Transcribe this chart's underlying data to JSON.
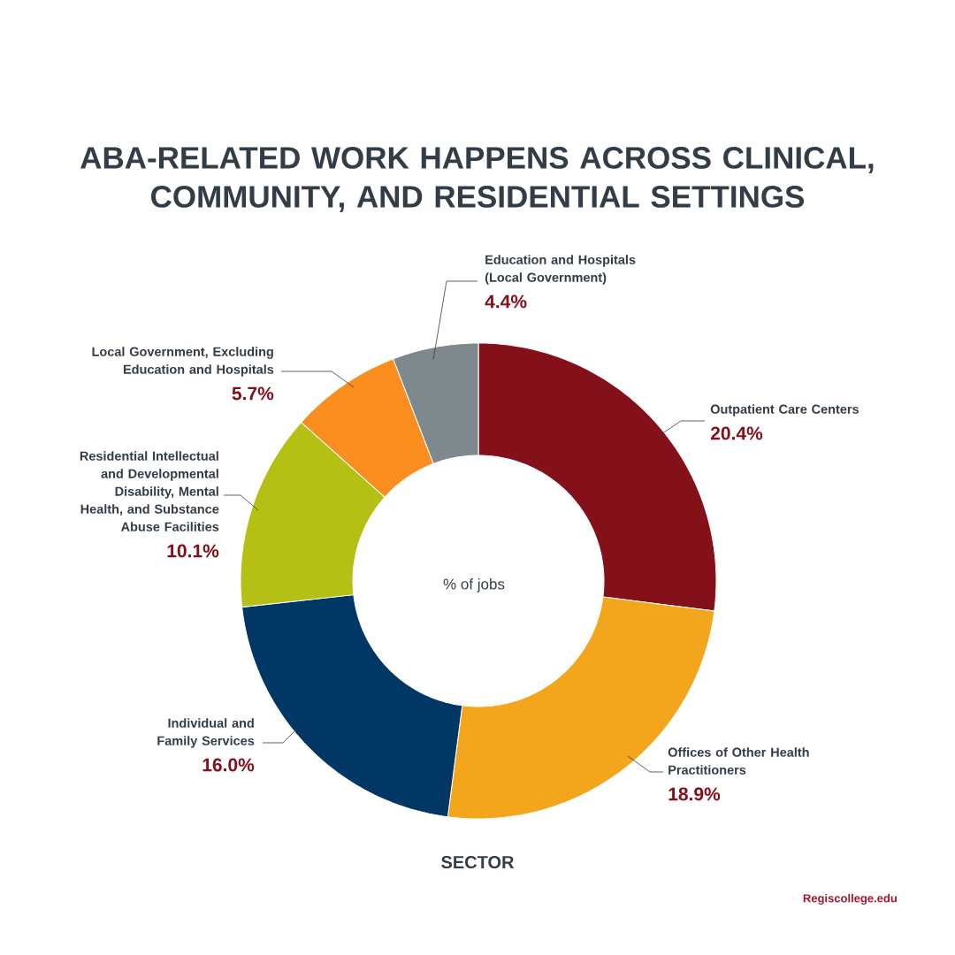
{
  "chart_data": {
    "type": "donut",
    "title": "ABA-RELATED WORK HAPPENS ACROSS CLINICAL, COMMUNITY, AND RESIDENTIAL SETTINGS",
    "xlabel": "SECTOR",
    "categories": [
      "Outpatient Care Centers",
      "Offices of Other Health Practitioners",
      "Individual and Family Services",
      "Residential Intellectual and Developmental Disability, Mental Health, and Substance Abuse Facilities",
      "Local Government, Excluding Education and Hospitals",
      "Education and Hospitals (Local Government)"
    ],
    "values": [
      20.4,
      18.9,
      16.0,
      10.1,
      5.7,
      4.4
    ],
    "value_labels": [
      "20.4%",
      "18.9%",
      "16.0%",
      "10.1%",
      "5.7%",
      "4.4%"
    ],
    "colors": [
      "#84101a",
      "#f3a51c",
      "#003764",
      "#b5c014",
      "#f98e1f",
      "#7f888d"
    ],
    "annotations": [
      "% of jobs",
      "Regiscollege.edu"
    ]
  }
}
